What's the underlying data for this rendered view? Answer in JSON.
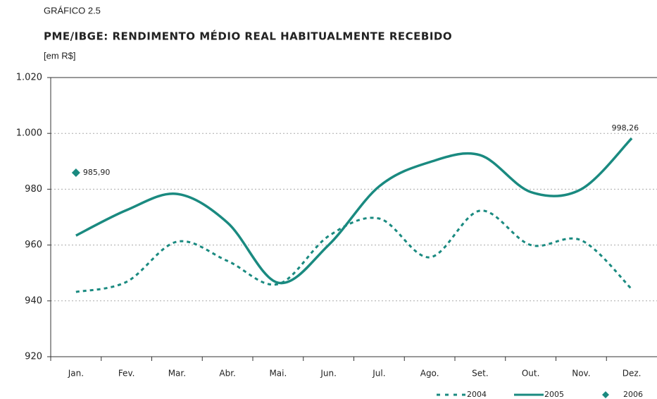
{
  "chart_data": {
    "type": "line",
    "kicker": "GRÁFICO 2.5",
    "title": "PME/IBGE: RENDIMENTO MÉDIO REAL HABITUALMENTE RECEBIDO",
    "subtitle": "[em R$]",
    "categories": [
      "Jan.",
      "Fev.",
      "Mar.",
      "Abr.",
      "Mai.",
      "Jun.",
      "Jul.",
      "Ago.",
      "Set.",
      "Out.",
      "Nov.",
      "Dez."
    ],
    "series": [
      {
        "name": "2004",
        "color": "#1a8a80",
        "style": "dashed",
        "values": [
          943.2,
          946.8,
          961.2,
          954.3,
          946,
          963.2,
          969.5,
          955.6,
          972.3,
          960,
          961.7,
          944.2
        ]
      },
      {
        "name": "2005",
        "color": "#1a8a80",
        "style": "solid",
        "values": [
          963.4,
          972.5,
          978.3,
          968,
          946.5,
          960,
          981,
          989.7,
          992.2,
          979,
          980,
          998.26
        ],
        "value_labels": [
          null,
          null,
          null,
          null,
          null,
          null,
          null,
          null,
          null,
          null,
          null,
          "998,26"
        ]
      },
      {
        "name": "2006",
        "color": "#1a8a80",
        "style": "marker",
        "values": [
          985.9,
          null,
          null,
          null,
          null,
          null,
          null,
          null,
          null,
          null,
          null,
          null
        ],
        "value_labels": [
          "985,90",
          null,
          null,
          null,
          null,
          null,
          null,
          null,
          null,
          null,
          null,
          null
        ]
      }
    ],
    "ylim": [
      920,
      1020
    ],
    "yticks": [
      920,
      940,
      960,
      980,
      {
        "value": 1000,
        "label": "1.000"
      },
      {
        "value": 1020,
        "label": "1.020"
      }
    ],
    "grid": true,
    "legend": "bottom-right"
  }
}
